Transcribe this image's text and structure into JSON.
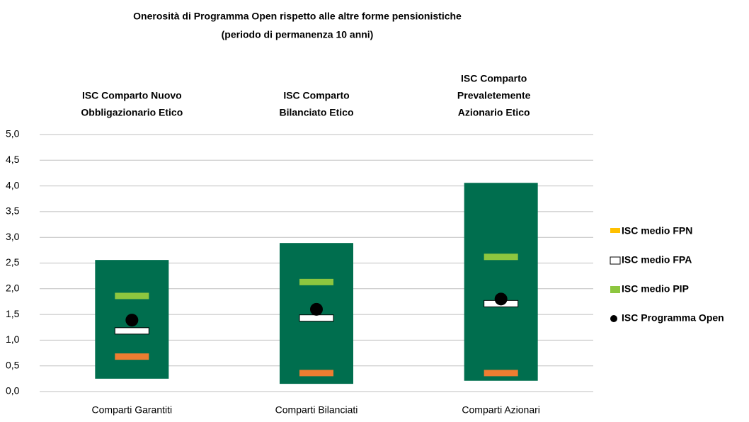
{
  "chart_data": {
    "type": "range",
    "title": "Onerosità di Programma Open rispetto alle altre forme pensionistiche",
    "subtitle": "(periodo di permanenza 10 anni)",
    "annotations": [
      [
        "ISC Comparto Nuovo",
        "Obbligazionario  Etico"
      ],
      [
        "ISC Comparto",
        "Bilanciato  Etico"
      ],
      [
        "ISC Comparto",
        "Prevaletemente",
        "Azionario  Etico"
      ]
    ],
    "categories": [
      "Comparti Garantiti",
      "Comparti Bilanciati",
      "Comparti Azionari"
    ],
    "range": {
      "color": "#006e4e",
      "low": [
        0.25,
        0.15,
        0.21
      ],
      "high": [
        2.56,
        2.89,
        4.06
      ]
    },
    "series": [
      {
        "name": "ISC medio FPN",
        "color": "#ed7d31",
        "values": [
          0.68,
          0.36,
          0.36
        ]
      },
      {
        "name": "ISC medio FPA",
        "color": "#ffffff",
        "values": [
          1.18,
          1.43,
          1.71
        ]
      },
      {
        "name": "ISC medio PIP",
        "color": "#8dc63f",
        "values": [
          1.86,
          2.13,
          2.62
        ]
      },
      {
        "name": "ISC Programma Open",
        "color": "#000000",
        "values": [
          1.39,
          1.6,
          1.8
        ]
      }
    ],
    "ylim": [
      0,
      5
    ],
    "yticks": [
      {
        "value": 0,
        "label": "0,0"
      },
      {
        "value": 0.5,
        "label": "0,5"
      },
      {
        "value": 1,
        "label": "1,0"
      },
      {
        "value": 1.5,
        "label": "1,5"
      },
      {
        "value": 2,
        "label": "2,0"
      },
      {
        "value": 2.5,
        "label": "2,5"
      },
      {
        "value": 3,
        "label": "3,0"
      },
      {
        "value": 3.5,
        "label": "3,5"
      },
      {
        "value": 4,
        "label": "4,0"
      },
      {
        "value": 4.5,
        "label": "4,5"
      },
      {
        "value": 5,
        "label": "5,0"
      }
    ],
    "grid": true
  }
}
